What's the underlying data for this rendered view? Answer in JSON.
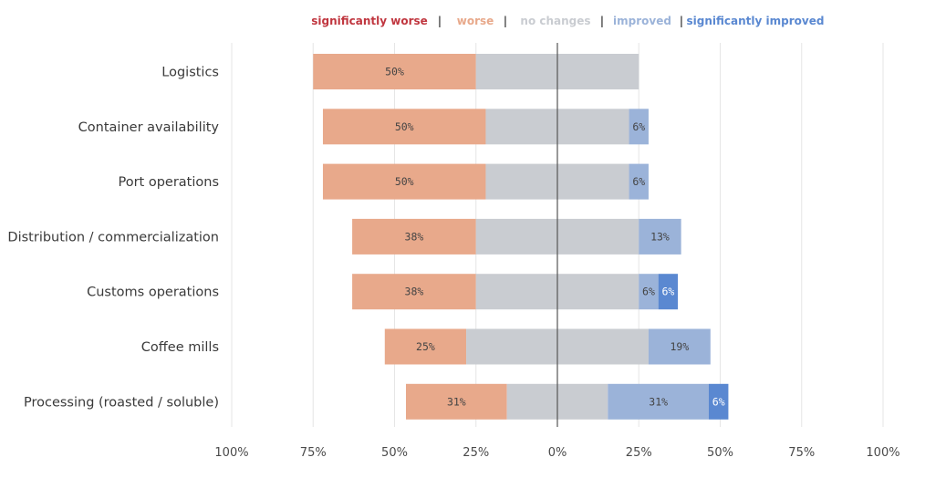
{
  "colors": {
    "significantly_worse": "#c0363f",
    "worse": "#e8a98b",
    "no_changes": "#c9ccd1",
    "improved": "#9bb3d9",
    "significantly_improved": "#5a88d1",
    "separator": "#444444",
    "grid": "#e6e6e6",
    "axis": "#555555"
  },
  "chart_data": {
    "type": "bar",
    "orientation": "horizontal",
    "stacking": "diverging",
    "legend": {
      "placement": "top",
      "separator": "|",
      "entries": [
        {
          "key": "significantly_worse",
          "label": "significantly worse"
        },
        {
          "key": "worse",
          "label": "worse"
        },
        {
          "key": "no_changes",
          "label": "no changes"
        },
        {
          "key": "improved",
          "label": "improved"
        },
        {
          "key": "significantly_improved",
          "label": "significantly improved"
        }
      ]
    },
    "categories": [
      "Logistics",
      "Container availability",
      "Port operations",
      "Distribution / commercialization",
      "Customs operations",
      "Coffee mills",
      "Processing (roasted / soluble)"
    ],
    "series": [
      {
        "key": "significantly_worse",
        "name": "significantly worse",
        "values": [
          0,
          0,
          0,
          0,
          0,
          0,
          0
        ]
      },
      {
        "key": "worse",
        "name": "worse",
        "values": [
          50,
          50,
          50,
          38,
          38,
          25,
          31
        ]
      },
      {
        "key": "no_changes",
        "name": "no changes",
        "values": [
          50,
          44,
          44,
          50,
          50,
          56,
          31
        ]
      },
      {
        "key": "improved",
        "name": "improved",
        "values": [
          0,
          6,
          6,
          13,
          6,
          19,
          31
        ]
      },
      {
        "key": "significantly_improved",
        "name": "significantly improved",
        "values": [
          0,
          0,
          0,
          0,
          6,
          0,
          6
        ]
      }
    ],
    "data_labels": [
      [
        {
          "series": "worse",
          "text": "50%"
        }
      ],
      [
        {
          "series": "worse",
          "text": "50%"
        },
        {
          "series": "improved",
          "text": "6%"
        }
      ],
      [
        {
          "series": "worse",
          "text": "50%"
        },
        {
          "series": "improved",
          "text": "6%"
        }
      ],
      [
        {
          "series": "worse",
          "text": "38%"
        },
        {
          "series": "improved",
          "text": "13%"
        }
      ],
      [
        {
          "series": "worse",
          "text": "38%"
        },
        {
          "series": "improved",
          "text": "6%"
        },
        {
          "series": "significantly_improved",
          "text": "6%"
        }
      ],
      [
        {
          "series": "worse",
          "text": "25%"
        },
        {
          "series": "improved",
          "text": "19%"
        }
      ],
      [
        {
          "series": "worse",
          "text": "31%"
        },
        {
          "series": "improved",
          "text": "31%"
        },
        {
          "series": "significantly_improved",
          "text": "6%"
        }
      ]
    ],
    "x_ticks": [
      {
        "value": -100,
        "label": "100%"
      },
      {
        "value": -75,
        "label": "75%"
      },
      {
        "value": -50,
        "label": "50%"
      },
      {
        "value": -25,
        "label": "25%"
      },
      {
        "value": 0,
        "label": "0%"
      },
      {
        "value": 25,
        "label": "25%"
      },
      {
        "value": 50,
        "label": "50%"
      },
      {
        "value": 75,
        "label": "75%"
      },
      {
        "value": 100,
        "label": "100%"
      }
    ],
    "xlim": [
      -100,
      100
    ],
    "grid": true,
    "title": "",
    "xlabel": "",
    "ylabel": ""
  }
}
